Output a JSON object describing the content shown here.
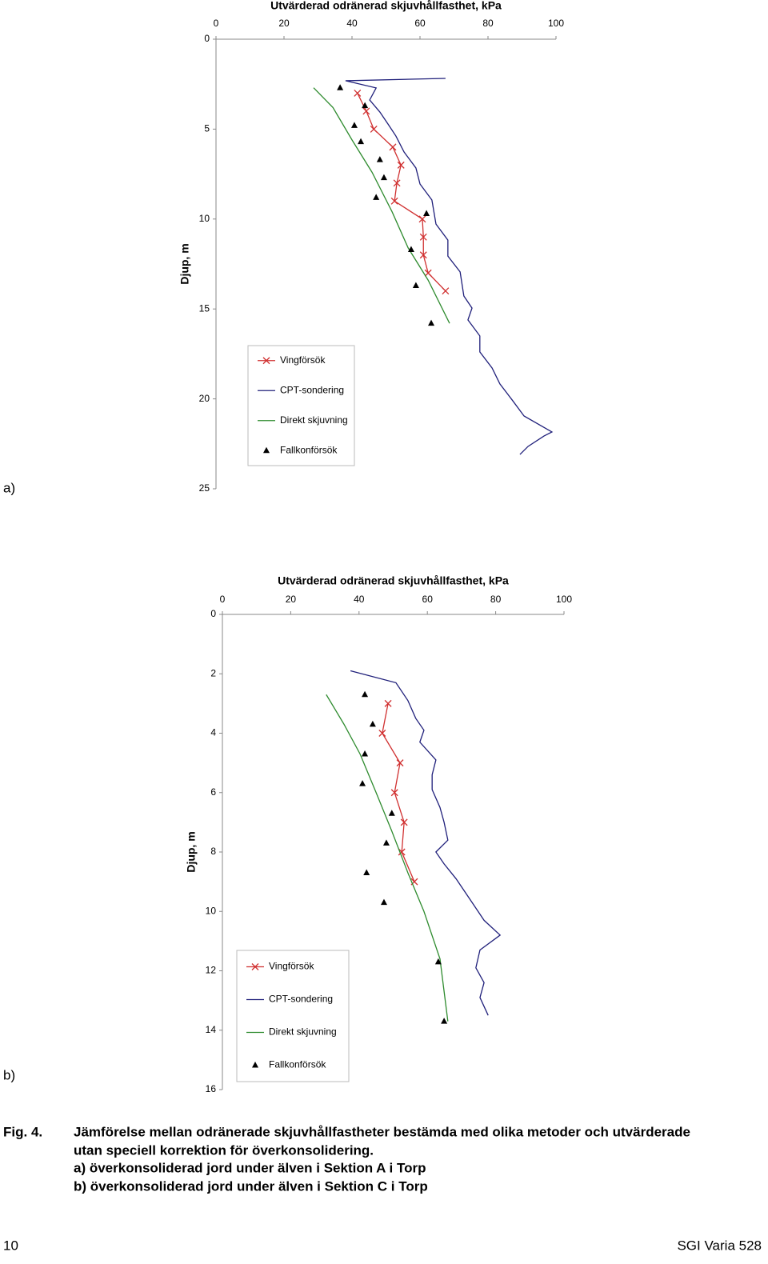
{
  "chart_data": [
    {
      "type": "line",
      "panel_label": "a)",
      "title": "Utvärderad odränerad skjuvhållfasthet, kPa",
      "y_label": "Djup, m",
      "xlim": [
        0,
        100
      ],
      "xticks": [
        0,
        20,
        40,
        60,
        80,
        100
      ],
      "ylim": [
        0,
        25
      ],
      "yticks": [
        0,
        5,
        10,
        15,
        20,
        25
      ],
      "y_inverted": true,
      "legend": "lower-left",
      "series": [
        {
          "name": "Vingförsök",
          "color": "#d03030",
          "marker": "x",
          "line": true,
          "x": [
            41.6,
            44.2,
            46.4,
            52,
            54.4,
            53.2,
            52.5,
            60.7,
            61,
            61,
            62.4,
            67.5
          ],
          "y": [
            3,
            4,
            5,
            6,
            7,
            8,
            9,
            10,
            11,
            12,
            13,
            14
          ]
        },
        {
          "name": "CPT-sondering",
          "color": "#1f1f7a",
          "marker": "none",
          "line": true,
          "x": [
            67.5,
            38.1,
            47.1,
            45.2,
            48.2,
            50.6,
            52.9,
            55.3,
            58.8,
            60,
            63.5,
            64.7,
            68.2,
            68.2,
            71.8,
            72.9,
            75.3,
            74.1,
            77.6,
            77.6,
            81.2,
            83.5,
            87.1,
            90.6,
            98.8,
            96.5,
            91.8,
            89.4
          ],
          "y": [
            2.18,
            2.31,
            2.71,
            3.38,
            4.05,
            4.72,
            5.38,
            6.27,
            7.16,
            8.05,
            8.94,
            10.28,
            11.17,
            12.06,
            12.94,
            14.28,
            14.95,
            15.61,
            16.5,
            17.39,
            18.28,
            19.17,
            20.06,
            20.95,
            21.84,
            22.06,
            22.64,
            23.09
          ]
        },
        {
          "name": "Direkt skjuvning",
          "color": "#2e8b2e",
          "marker": "none",
          "line": true,
          "x": [
            28.7,
            34.4,
            40,
            45.9,
            51.8,
            56.5,
            62.4,
            68.7
          ],
          "y": [
            2.7,
            3.8,
            5.6,
            7.4,
            9.6,
            11.6,
            13.4,
            15.8
          ]
        },
        {
          "name": "Fallkonförsök",
          "color": "#000000",
          "marker": "triangle",
          "line": false,
          "x": [
            36.5,
            43.8,
            40.7,
            42.6,
            48.2,
            49.4,
            47.1,
            61.9,
            57.4,
            58.8,
            63.3
          ],
          "y": [
            2.7,
            3.7,
            4.8,
            5.7,
            6.7,
            7.7,
            8.8,
            9.7,
            11.7,
            13.7,
            15.8
          ]
        }
      ]
    },
    {
      "type": "line",
      "panel_label": "b)",
      "title": "Utvärderad odränerad skjuvhållfasthet, kPa",
      "y_label": "Djup, m",
      "xlim": [
        0,
        100
      ],
      "xticks": [
        0,
        20,
        40,
        60,
        80,
        100
      ],
      "ylim": [
        0,
        16
      ],
      "yticks": [
        0,
        2,
        4,
        6,
        8,
        10,
        12,
        14,
        16
      ],
      "y_inverted": true,
      "legend": "lower-left",
      "series": [
        {
          "name": "Vingförsök",
          "color": "#d03030",
          "marker": "x",
          "line": true,
          "x": [
            48.5,
            46.8,
            52,
            50.4,
            53.2,
            52.5,
            56.2
          ],
          "y": [
            3,
            4,
            5,
            6,
            7,
            8,
            9
          ]
        },
        {
          "name": "CPT-sondering",
          "color": "#1f1f7a",
          "marker": "none",
          "line": true,
          "x": [
            37.5,
            50.8,
            54.3,
            56.6,
            59,
            57.8,
            62.5,
            61.4,
            61.4,
            63.7,
            64.9,
            66,
            62.5,
            64.9,
            68.4,
            73.1,
            76.6,
            81.3,
            75.4,
            74.2,
            76.6,
            75.4,
            77.8
          ],
          "y": [
            1.9,
            2.3,
            2.9,
            3.5,
            3.9,
            4.3,
            4.9,
            5.4,
            5.9,
            6.5,
            7,
            7.6,
            8,
            8.4,
            8.9,
            9.7,
            10.3,
            10.8,
            11.3,
            11.9,
            12.4,
            12.9,
            13.5
          ]
        },
        {
          "name": "Direkt skjuvning",
          "color": "#2e8b2e",
          "marker": "none",
          "line": true,
          "x": [
            30.4,
            35.6,
            40.3,
            45,
            49.6,
            54.3,
            59,
            63.7,
            66
          ],
          "y": [
            2.7,
            3.7,
            4.7,
            6,
            7.3,
            8.7,
            10,
            11.6,
            13.7
          ]
        },
        {
          "name": "Fallkonförsök",
          "color": "#000000",
          "marker": "triangle",
          "line": false,
          "x": [
            41.7,
            44,
            41.7,
            41,
            49.6,
            48,
            42.2,
            47.3,
            63.2,
            64.9
          ],
          "y": [
            2.7,
            3.7,
            4.7,
            5.7,
            6.7,
            7.7,
            8.7,
            9.7,
            11.7,
            13.7
          ]
        }
      ]
    }
  ],
  "caption": {
    "label": "Fig. 4.",
    "lines": [
      "Jämförelse mellan odränerade skjuvhållfastheter bestämda med olika metoder och utvärderade",
      "utan speciell korrektion för överkonsolidering.",
      "a) överkonsoliderad jord under älven i Sektion A i Torp",
      "b) överkonsoliderad jord under älven i Sektion C i Torp"
    ]
  },
  "footer": {
    "page": "10",
    "publication": "SGI Varia 528"
  }
}
